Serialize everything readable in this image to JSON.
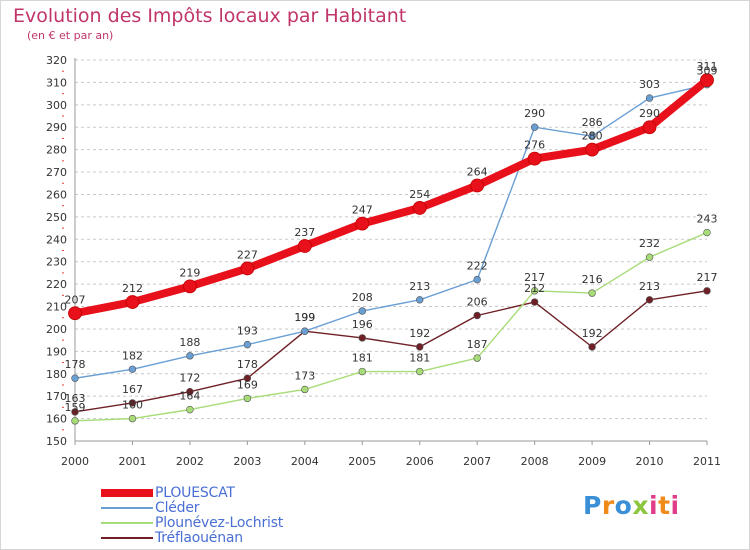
{
  "title": "Evolution des Impôts locaux par Habitant",
  "subtitle": "(en € et par an)",
  "logo": {
    "text": "Proxiti",
    "letter_colors": [
      "#3a8fd6",
      "#f08a1a",
      "#3a8fd6",
      "#8cc63f",
      "#e03c8a",
      "#f08a1a",
      "#e03c8a"
    ]
  },
  "chart_data": {
    "type": "line",
    "x": [
      2000,
      2001,
      2002,
      2003,
      2004,
      2005,
      2006,
      2007,
      2008,
      2009,
      2010,
      2011
    ],
    "x_tick_labels": [
      "2000",
      "2001",
      "2002",
      "2003",
      "2004",
      "2005",
      "2006",
      "2007",
      "2008",
      "2009",
      "2010",
      "2011"
    ],
    "y_tick_labels": [
      "150",
      "160",
      "170",
      "180",
      "190",
      "200",
      "210",
      "220",
      "230",
      "240",
      "250",
      "260",
      "270",
      "280",
      "290",
      "300",
      "310",
      "320"
    ],
    "ylim": [
      150,
      320
    ],
    "grid": "horizontal",
    "legend_position": "bottom-left",
    "series": [
      {
        "name": "PLOUESCAT",
        "color": "#e8101a",
        "values": [
          207,
          212,
          219,
          227,
          237,
          247,
          254,
          264,
          276,
          280,
          290,
          311
        ]
      },
      {
        "name": "Cléder",
        "color": "#6a9fd4",
        "values": [
          178,
          182,
          188,
          193,
          199,
          208,
          213,
          222,
          290,
          286,
          303,
          309
        ]
      },
      {
        "name": "Plounévez-Lochrist",
        "color": "#a8dc78",
        "values": [
          159,
          160,
          164,
          169,
          173,
          181,
          181,
          187,
          217,
          216,
          232,
          243
        ]
      },
      {
        "name": "Tréflaouénan",
        "color": "#6e2026",
        "values": [
          163,
          167,
          172,
          178,
          199,
          196,
          192,
          206,
          212,
          192,
          213,
          217
        ]
      }
    ]
  }
}
